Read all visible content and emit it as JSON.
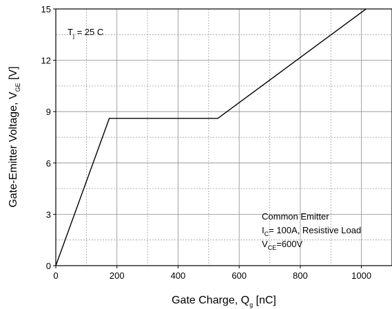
{
  "chart_data": {
    "type": "line",
    "xlabel": {
      "main": "Gate Charge, Q",
      "sub": "g",
      "unit": " [nC]"
    },
    "ylabel": {
      "main": "Gate-Emitter Voltage, V",
      "sub": "GE",
      "unit": " [V]"
    },
    "xlim": [
      0,
      1100
    ],
    "ylim": [
      0,
      15
    ],
    "x_ticks": [
      0,
      200,
      400,
      600,
      800,
      1000
    ],
    "y_ticks": [
      0,
      3,
      6,
      9,
      12,
      15
    ],
    "x_minor_step": 100,
    "y_minor_step": 1.5,
    "grid": true,
    "series": [
      {
        "x": [
          0,
          175,
          530,
          1015
        ],
        "y": [
          0,
          8.6,
          8.6,
          15
        ]
      }
    ],
    "annotations": {
      "temperature": {
        "pre": "T",
        "sub": "j",
        "post": " = 25 C"
      },
      "condition_title": "Common Emitter",
      "current": {
        "pre": "I",
        "sub": "C",
        "post": "= 100A, Resistive Load"
      },
      "voltage": {
        "pre": "V",
        "sub": "CE",
        "post": "=600V"
      }
    }
  }
}
